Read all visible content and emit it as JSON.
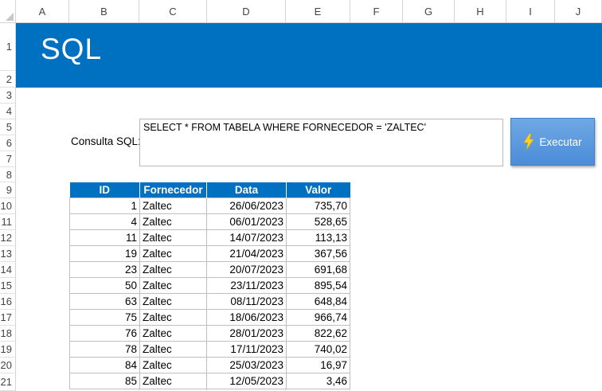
{
  "columns": [
    "A",
    "B",
    "C",
    "D",
    "E",
    "F",
    "G",
    "H",
    "I",
    "J"
  ],
  "rows": [
    "1",
    "2",
    "3",
    "4",
    "5",
    "6",
    "7",
    "8",
    "9",
    "10",
    "11",
    "12",
    "13",
    "14",
    "15",
    "16",
    "17",
    "18",
    "19",
    "20",
    "21"
  ],
  "banner": {
    "title": "SQL",
    "color": "#0070c0"
  },
  "query": {
    "label": "Consulta SQL:",
    "value": "SELECT * FROM TABELA WHERE FORNECEDOR = 'ZALTEC'"
  },
  "execute_button": {
    "label": "Executar",
    "icon": "lightning-bolt-icon"
  },
  "table": {
    "headers": [
      "ID",
      "Fornecedor",
      "Data",
      "Valor"
    ],
    "rows": [
      [
        "1",
        "Zaltec",
        "26/06/2023",
        "735,70"
      ],
      [
        "4",
        "Zaltec",
        "06/01/2023",
        "528,65"
      ],
      [
        "11",
        "Zaltec",
        "14/07/2023",
        "113,13"
      ],
      [
        "19",
        "Zaltec",
        "21/04/2023",
        "367,56"
      ],
      [
        "23",
        "Zaltec",
        "20/07/2023",
        "691,68"
      ],
      [
        "50",
        "Zaltec",
        "23/11/2023",
        "895,54"
      ],
      [
        "63",
        "Zaltec",
        "08/11/2023",
        "648,84"
      ],
      [
        "75",
        "Zaltec",
        "18/06/2023",
        "966,74"
      ],
      [
        "76",
        "Zaltec",
        "28/01/2023",
        "822,62"
      ],
      [
        "78",
        "Zaltec",
        "17/11/2023",
        "740,02"
      ],
      [
        "84",
        "Zaltec",
        "25/03/2023",
        "16,97"
      ],
      [
        "85",
        "Zaltec",
        "12/05/2023",
        "3,46"
      ]
    ]
  }
}
